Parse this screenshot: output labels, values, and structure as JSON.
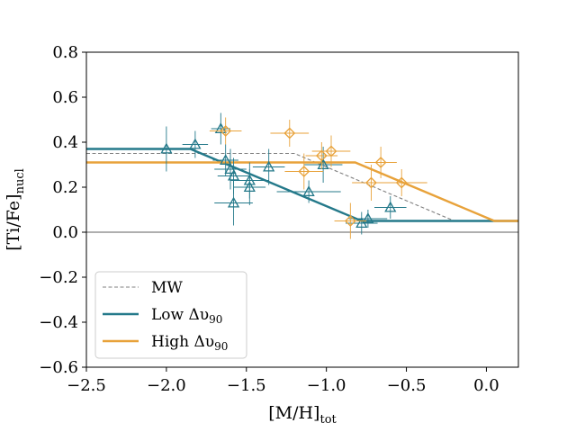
{
  "chart_data": {
    "type": "scatter",
    "title": "",
    "xlabel": "[M/H]",
    "xlabel_sub": "tot",
    "ylabel": "[Ti/Fe]",
    "ylabel_sub": "nucl",
    "xlim": [
      -2.5,
      0.2
    ],
    "ylim": [
      -0.6,
      0.8
    ],
    "xticks": [
      -2.5,
      -2.0,
      -1.5,
      -1.0,
      -0.5,
      0.0
    ],
    "xtick_labels": [
      "−2.5",
      "−2.0",
      "−1.5",
      "−1.0",
      "−0.5",
      "0.0"
    ],
    "yticks": [
      -0.6,
      -0.4,
      -0.2,
      0.0,
      0.2,
      0.4,
      0.6,
      0.8
    ],
    "ytick_labels": [
      "−0.6",
      "−0.4",
      "−0.2",
      "0.0",
      "0.2",
      "0.4",
      "0.6",
      "0.8"
    ],
    "reference_line_y": 0.0,
    "legend_position": "lower-left",
    "colors": {
      "low": "#24798a",
      "high": "#e8a23a",
      "mw": "#7f7f7f",
      "zero": "#7f7f7f"
    },
    "series": [
      {
        "name": "MW",
        "legend_label": "MW",
        "kind": "line",
        "style": "dashed",
        "color": "#7f7f7f",
        "x": [
          -2.5,
          -1.2,
          -0.2
        ],
        "y": [
          0.35,
          0.35,
          0.05
        ]
      },
      {
        "name": "Low Δυ 90",
        "legend_label": "Low Δυ",
        "legend_sub": "90",
        "kind": "line",
        "style": "solid",
        "color": "#24798a",
        "x": [
          -2.5,
          -1.85,
          -0.78,
          0.2
        ],
        "y": [
          0.37,
          0.37,
          0.05,
          0.05
        ]
      },
      {
        "name": "High Δυ 90",
        "legend_label": "High Δυ",
        "legend_sub": "90",
        "kind": "line",
        "style": "solid",
        "color": "#e8a23a",
        "x": [
          -2.5,
          -0.82,
          0.05,
          0.2
        ],
        "y": [
          0.31,
          0.31,
          0.05,
          0.05
        ]
      },
      {
        "name": "Low Δυ 90 points",
        "kind": "points",
        "marker": "triangle",
        "color": "#24798a",
        "points": [
          {
            "x": -2.0,
            "y": 0.37,
            "xerr": 0.12,
            "yerr": 0.1
          },
          {
            "x": -1.82,
            "y": 0.39,
            "xerr": 0.08,
            "yerr": 0.06
          },
          {
            "x": -1.66,
            "y": 0.46,
            "xerr": 0.06,
            "yerr": 0.07
          },
          {
            "x": -1.63,
            "y": 0.32,
            "xerr": 0.08,
            "yerr": 0.07
          },
          {
            "x": -1.6,
            "y": 0.28,
            "xerr": 0.1,
            "yerr": 0.09
          },
          {
            "x": -1.58,
            "y": 0.25,
            "xerr": 0.1,
            "yerr": 0.08
          },
          {
            "x": -1.58,
            "y": 0.13,
            "xerr": 0.12,
            "yerr": 0.1
          },
          {
            "x": -1.48,
            "y": 0.23,
            "xerr": 0.12,
            "yerr": 0.08
          },
          {
            "x": -1.48,
            "y": 0.2,
            "xerr": 0.1,
            "yerr": 0.08
          },
          {
            "x": -1.36,
            "y": 0.29,
            "xerr": 0.1,
            "yerr": 0.08
          },
          {
            "x": -1.11,
            "y": 0.18,
            "xerr": 0.2,
            "yerr": 0.05
          },
          {
            "x": -1.02,
            "y": 0.3,
            "xerr": 0.12,
            "yerr": 0.08
          },
          {
            "x": -0.78,
            "y": 0.04,
            "xerr": 0.1,
            "yerr": 0.05
          },
          {
            "x": -0.74,
            "y": 0.06,
            "xerr": 0.12,
            "yerr": 0.04
          },
          {
            "x": -0.6,
            "y": 0.11,
            "xerr": 0.1,
            "yerr": 0.05
          }
        ]
      },
      {
        "name": "High Δυ 90 points",
        "kind": "points",
        "marker": "diamond",
        "color": "#e8a23a",
        "points": [
          {
            "x": -1.63,
            "y": 0.45,
            "xerr": 0.1,
            "yerr": 0.06
          },
          {
            "x": -1.23,
            "y": 0.44,
            "xerr": 0.12,
            "yerr": 0.06
          },
          {
            "x": -1.14,
            "y": 0.27,
            "xerr": 0.12,
            "yerr": 0.08
          },
          {
            "x": -1.03,
            "y": 0.34,
            "xerr": 0.1,
            "yerr": 0.06
          },
          {
            "x": -0.97,
            "y": 0.36,
            "xerr": 0.12,
            "yerr": 0.07
          },
          {
            "x": -0.85,
            "y": 0.05,
            "xerr": 0.1,
            "yerr": 0.08
          },
          {
            "x": -0.72,
            "y": 0.22,
            "xerr": 0.12,
            "yerr": 0.08
          },
          {
            "x": -0.66,
            "y": 0.31,
            "xerr": 0.1,
            "yerr": 0.07
          },
          {
            "x": -0.53,
            "y": 0.22,
            "xerr": 0.16,
            "yerr": 0.06
          }
        ]
      }
    ]
  }
}
